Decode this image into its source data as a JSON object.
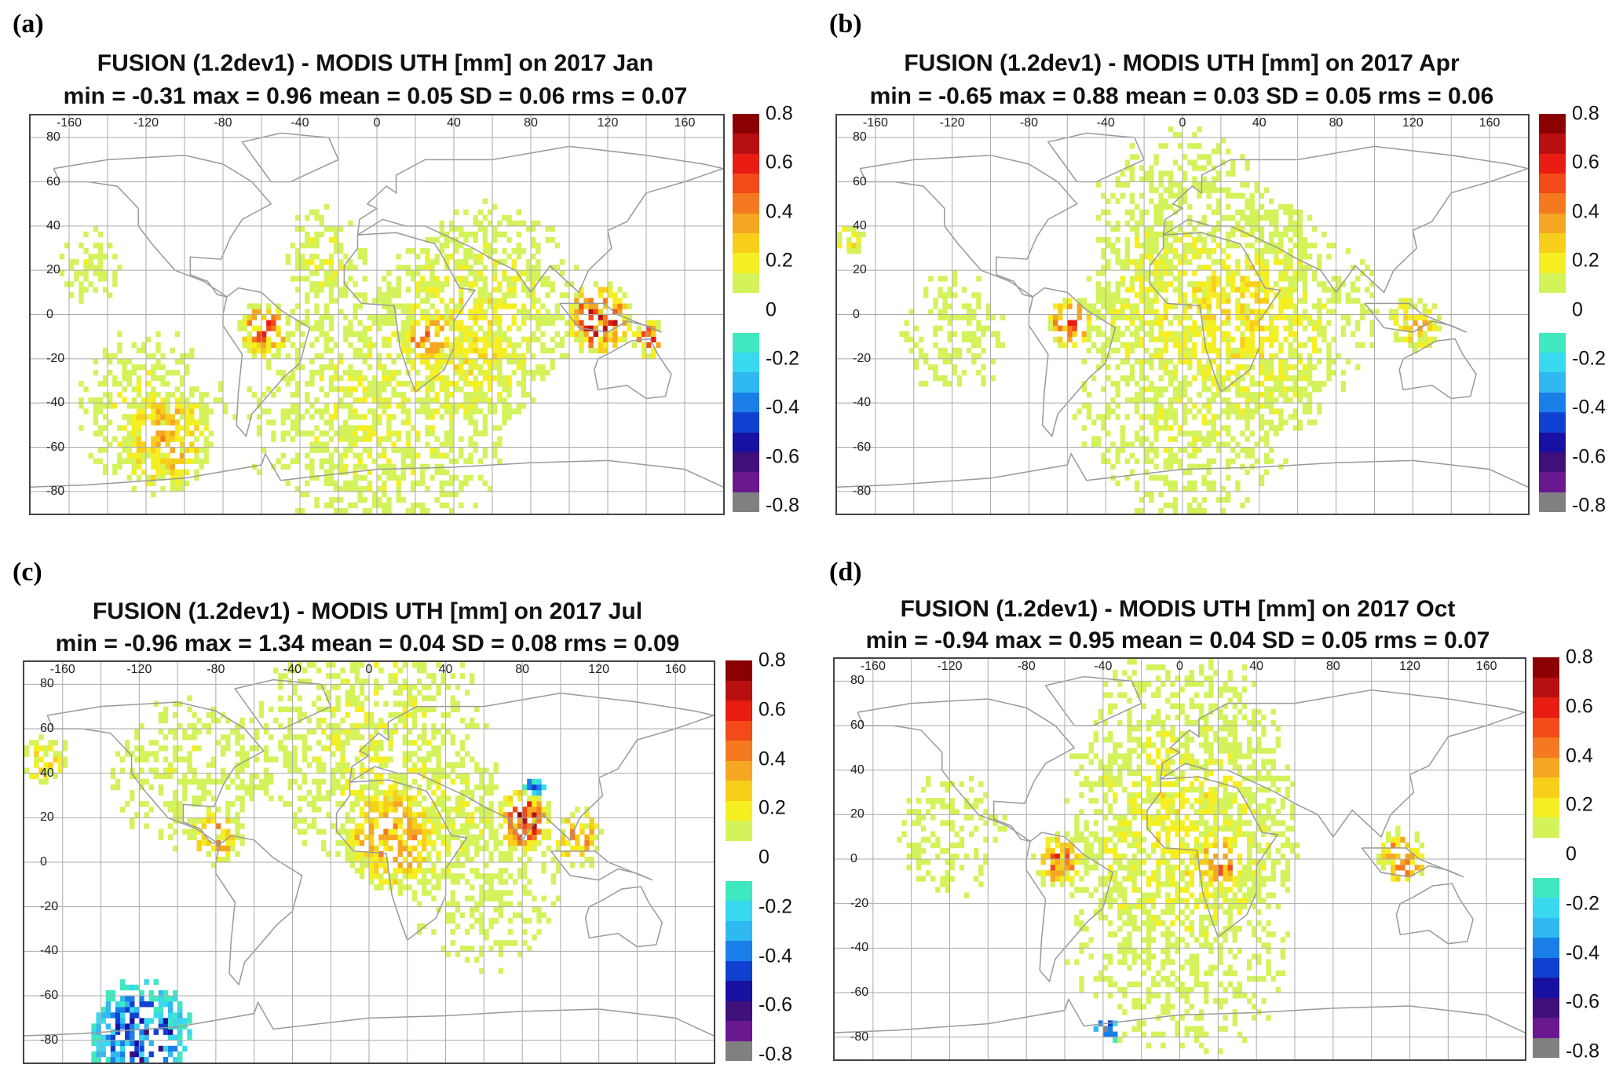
{
  "chart_data": [
    {
      "type": "heatmap",
      "panel_label": "(a)",
      "title": "FUSION (1.2dev1)  - MODIS UTH [mm] on 2017 Jan",
      "stats": "min = -0.31 max = 0.96 mean = 0.05  SD = 0.06 rms = 0.07",
      "hotspots": [
        [
          -60,
          -8,
          14,
          0.45
        ],
        [
          25,
          -12,
          10,
          0.35
        ],
        [
          115,
          -3,
          18,
          0.6
        ],
        [
          140,
          -12,
          10,
          0.5
        ],
        [
          -110,
          -60,
          25,
          0.2
        ],
        [
          0,
          -45,
          90,
          0.15
        ],
        [
          -120,
          -45,
          50,
          0.15
        ],
        [
          60,
          5,
          60,
          0.15
        ],
        [
          -150,
          20,
          25,
          0.13
        ],
        [
          -30,
          30,
          25,
          0.13
        ]
      ]
    },
    {
      "type": "heatmap",
      "panel_label": "(b)",
      "title": "FUSION (1.2dev1)  - MODIS UTH [mm] on 2017 Apr",
      "stats": "min = -0.65 max = 0.88 mean = 0.03 SD = 0.05 rms = 0.06",
      "hotspots": [
        [
          -60,
          -5,
          12,
          0.55
        ],
        [
          120,
          -5,
          15,
          0.3
        ],
        [
          -175,
          32,
          10,
          0.25
        ],
        [
          0,
          -40,
          80,
          0.14
        ],
        [
          0,
          35,
          70,
          0.13
        ],
        [
          60,
          0,
          60,
          0.13
        ],
        [
          -120,
          -10,
          40,
          0.13
        ]
      ]
    },
    {
      "type": "heatmap",
      "panel_label": "(c)",
      "title": "FUSION (1.2dev1)  - MODIS UTH [mm] on 2017 Jul",
      "stats": "min = -0.96 max = 1.34 mean = 0.04  SD = 0.08 rms = 0.09",
      "hotspots": [
        [
          80,
          18,
          15,
          0.55
        ],
        [
          85,
          32,
          6,
          -0.5
        ],
        [
          110,
          10,
          15,
          0.35
        ],
        [
          -80,
          10,
          15,
          0.3
        ],
        [
          10,
          10,
          25,
          0.3
        ],
        [
          -170,
          45,
          15,
          0.25
        ],
        [
          0,
          55,
          80,
          0.15
        ],
        [
          -100,
          40,
          50,
          0.13
        ],
        [
          60,
          -10,
          60,
          0.12
        ],
        [
          -120,
          -80,
          30,
          -0.5
        ]
      ]
    },
    {
      "type": "heatmap",
      "panel_label": "(d)",
      "title": "FUSION (1.2dev1)  - MODIS UTH [mm] on 2017 Oct",
      "stats": "min = -0.94 max = 0.95 mean = 0.04  SD = 0.05 rms = 0.07",
      "hotspots": [
        [
          -65,
          -2,
          14,
          0.4
        ],
        [
          20,
          -3,
          12,
          0.3
        ],
        [
          115,
          0,
          15,
          0.45
        ],
        [
          -40,
          -78,
          8,
          -0.6
        ],
        [
          0,
          40,
          80,
          0.13
        ],
        [
          0,
          -30,
          90,
          0.12
        ],
        [
          -120,
          10,
          40,
          0.13
        ]
      ]
    }
  ],
  "axes": {
    "xticks": [
      -160,
      -120,
      -80,
      -40,
      0,
      40,
      80,
      120,
      160
    ],
    "yticks": [
      80,
      60,
      40,
      20,
      0,
      -20,
      -40,
      -60,
      -80
    ],
    "xlim": [
      -180,
      180
    ],
    "ylim": [
      -90,
      90
    ]
  },
  "colorbar": {
    "labels": [
      "0.8",
      "0.6",
      "0.4",
      "0.2",
      "0",
      "-0.2",
      "-0.4",
      "-0.6",
      "-0.8"
    ],
    "colors": [
      "#8b0000",
      "#b81010",
      "#e81c10",
      "#f24a18",
      "#f57a1f",
      "#f5a623",
      "#f7cf1b",
      "#f5ef22",
      "#d4f25a",
      "#ffffff",
      "#ffffff",
      "#40e8c0",
      "#38d8f0",
      "#30b8f0",
      "#1a7ee8",
      "#1040d0",
      "#1810a0",
      "#40107a",
      "#6a1890",
      "#808080"
    ]
  }
}
